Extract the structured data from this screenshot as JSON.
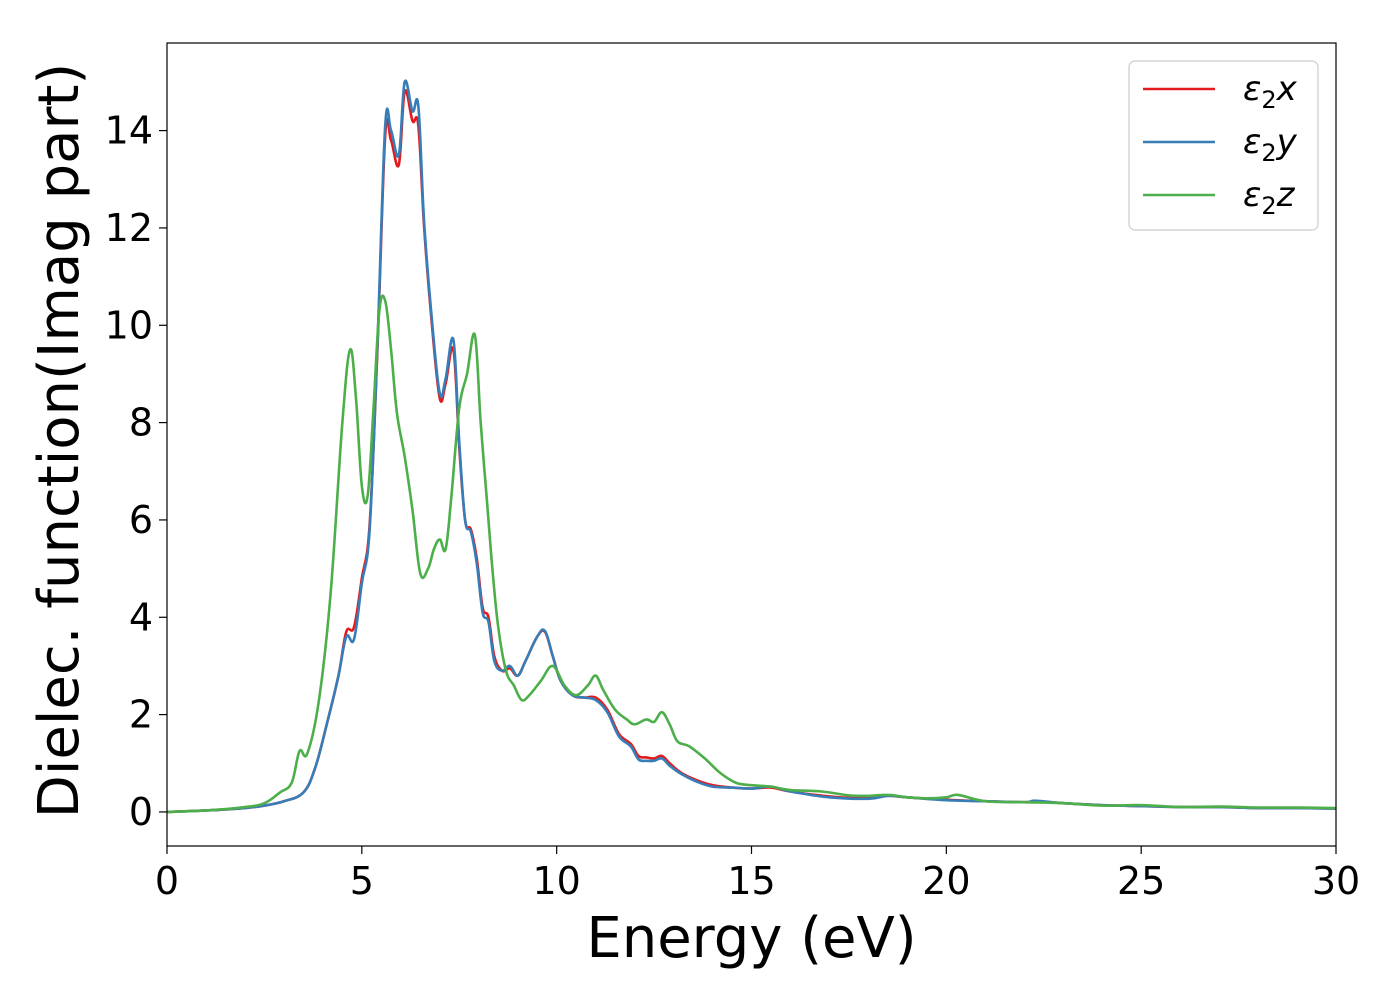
{
  "chart_data": {
    "type": "line",
    "xlabel": "Energy (eV)",
    "ylabel": "Dielec. function(Imag part)",
    "xlim": [
      0,
      30
    ],
    "ylim": [
      -0.7,
      15.8
    ],
    "xticks": [
      0,
      5,
      10,
      15,
      20,
      25,
      30
    ],
    "yticks": [
      0,
      2,
      4,
      6,
      8,
      10,
      12,
      14
    ],
    "grid": false,
    "legend_position": "top-right",
    "series": [
      {
        "name": "ε₂x",
        "legend_base": "ε",
        "legend_sub": "2",
        "legend_var": "x",
        "color": "#e41a1c",
        "x": [
          0,
          1,
          2,
          2.5,
          3,
          3.5,
          3.8,
          4.1,
          4.4,
          4.6,
          4.8,
          5.0,
          5.2,
          5.4,
          5.6,
          5.75,
          5.95,
          6.1,
          6.3,
          6.45,
          6.6,
          6.8,
          7.0,
          7.15,
          7.35,
          7.5,
          7.65,
          7.8,
          7.95,
          8.1,
          8.25,
          8.4,
          8.6,
          8.8,
          9.0,
          9.2,
          9.5,
          9.7,
          9.9,
          10.1,
          10.4,
          10.7,
          11.0,
          11.3,
          11.6,
          11.9,
          12.1,
          12.3,
          12.5,
          12.7,
          12.9,
          13.2,
          13.6,
          14.0,
          14.5,
          15.0,
          15.5,
          16.0,
          17.0,
          18.0,
          18.5,
          19.0,
          20.0,
          21.0,
          22.0,
          22.3,
          23.0,
          24.0,
          25.0,
          26.0,
          27.0,
          28.0,
          29.0,
          30.0
        ],
        "y": [
          0.0,
          0.03,
          0.08,
          0.13,
          0.22,
          0.4,
          0.9,
          1.8,
          2.8,
          3.7,
          3.8,
          4.8,
          5.9,
          9.5,
          13.9,
          13.8,
          13.3,
          14.8,
          14.2,
          14.1,
          12.0,
          10.0,
          8.5,
          8.8,
          9.5,
          7.5,
          6.0,
          5.8,
          5.2,
          4.2,
          4.0,
          3.2,
          2.9,
          2.95,
          2.8,
          3.1,
          3.6,
          3.7,
          3.2,
          2.7,
          2.4,
          2.35,
          2.35,
          2.1,
          1.6,
          1.4,
          1.15,
          1.12,
          1.1,
          1.15,
          1.0,
          0.8,
          0.65,
          0.55,
          0.5,
          0.48,
          0.5,
          0.42,
          0.32,
          0.28,
          0.33,
          0.3,
          0.25,
          0.22,
          0.2,
          0.22,
          0.18,
          0.14,
          0.12,
          0.1,
          0.1,
          0.08,
          0.08,
          0.07
        ]
      },
      {
        "name": "ε₂y",
        "legend_base": "ε",
        "legend_sub": "2",
        "legend_var": "y",
        "color": "#377eb8",
        "x": [
          0,
          1,
          2,
          2.5,
          3,
          3.5,
          3.8,
          4.1,
          4.4,
          4.6,
          4.8,
          5.0,
          5.2,
          5.4,
          5.6,
          5.75,
          5.95,
          6.1,
          6.3,
          6.45,
          6.6,
          6.8,
          7.0,
          7.15,
          7.35,
          7.5,
          7.65,
          7.8,
          7.95,
          8.1,
          8.25,
          8.4,
          8.6,
          8.8,
          9.0,
          9.2,
          9.5,
          9.7,
          9.9,
          10.1,
          10.4,
          10.7,
          11.0,
          11.3,
          11.6,
          11.9,
          12.1,
          12.3,
          12.5,
          12.7,
          12.9,
          13.2,
          13.6,
          14.0,
          14.5,
          15.0,
          15.5,
          16.0,
          17.0,
          18.0,
          18.5,
          19.0,
          20.0,
          21.0,
          22.0,
          22.3,
          23.0,
          24.0,
          25.0,
          26.0,
          27.0,
          28.0,
          29.0,
          30.0
        ],
        "y": [
          0.0,
          0.03,
          0.08,
          0.13,
          0.22,
          0.4,
          0.9,
          1.8,
          2.8,
          3.6,
          3.55,
          4.7,
          5.8,
          9.6,
          14.1,
          14.0,
          13.5,
          15.0,
          14.4,
          14.5,
          12.1,
          10.1,
          8.6,
          8.9,
          9.7,
          7.6,
          6.0,
          5.75,
          5.1,
          4.1,
          3.9,
          3.1,
          2.9,
          3.0,
          2.8,
          3.1,
          3.6,
          3.72,
          3.2,
          2.7,
          2.4,
          2.35,
          2.3,
          2.05,
          1.55,
          1.35,
          1.08,
          1.05,
          1.05,
          1.1,
          0.95,
          0.78,
          0.62,
          0.52,
          0.5,
          0.48,
          0.52,
          0.42,
          0.3,
          0.27,
          0.33,
          0.3,
          0.24,
          0.22,
          0.2,
          0.23,
          0.18,
          0.14,
          0.12,
          0.1,
          0.1,
          0.08,
          0.08,
          0.07
        ]
      },
      {
        "name": "ε₂z",
        "legend_base": "ε",
        "legend_sub": "2",
        "legend_var": "z",
        "color": "#4daf4a",
        "x": [
          0,
          1,
          2,
          2.5,
          2.9,
          3.2,
          3.4,
          3.6,
          3.9,
          4.2,
          4.5,
          4.7,
          4.85,
          5.0,
          5.15,
          5.3,
          5.45,
          5.6,
          5.75,
          5.9,
          6.1,
          6.3,
          6.5,
          6.7,
          6.85,
          7.0,
          7.15,
          7.3,
          7.5,
          7.7,
          7.9,
          8.05,
          8.2,
          8.35,
          8.5,
          8.7,
          8.9,
          9.1,
          9.3,
          9.6,
          9.9,
          10.2,
          10.5,
          10.8,
          11.0,
          11.2,
          11.5,
          11.8,
          12.0,
          12.3,
          12.5,
          12.7,
          12.9,
          13.1,
          13.4,
          13.8,
          14.2,
          14.6,
          15.0,
          15.5,
          16.0,
          16.8,
          17.5,
          18.0,
          18.5,
          19.0,
          19.5,
          20.0,
          20.3,
          21.0,
          22.0,
          23.0,
          24.0,
          25.0,
          26.0,
          27.0,
          28.0,
          29.0,
          30.0
        ],
        "y": [
          0.0,
          0.03,
          0.1,
          0.18,
          0.4,
          0.6,
          1.25,
          1.2,
          2.3,
          4.5,
          8.0,
          9.5,
          8.5,
          6.7,
          6.5,
          8.3,
          10.3,
          10.5,
          9.5,
          8.2,
          7.3,
          6.2,
          4.9,
          5.0,
          5.4,
          5.6,
          5.4,
          6.5,
          8.3,
          9.0,
          9.8,
          8.0,
          6.5,
          5.0,
          3.8,
          2.9,
          2.6,
          2.3,
          2.4,
          2.7,
          3.0,
          2.6,
          2.4,
          2.6,
          2.8,
          2.5,
          2.1,
          1.9,
          1.8,
          1.9,
          1.85,
          2.05,
          1.8,
          1.45,
          1.35,
          1.1,
          0.8,
          0.6,
          0.55,
          0.52,
          0.45,
          0.42,
          0.34,
          0.33,
          0.35,
          0.3,
          0.28,
          0.3,
          0.35,
          0.22,
          0.2,
          0.18,
          0.13,
          0.14,
          0.1,
          0.11,
          0.09,
          0.09,
          0.08
        ]
      }
    ]
  }
}
